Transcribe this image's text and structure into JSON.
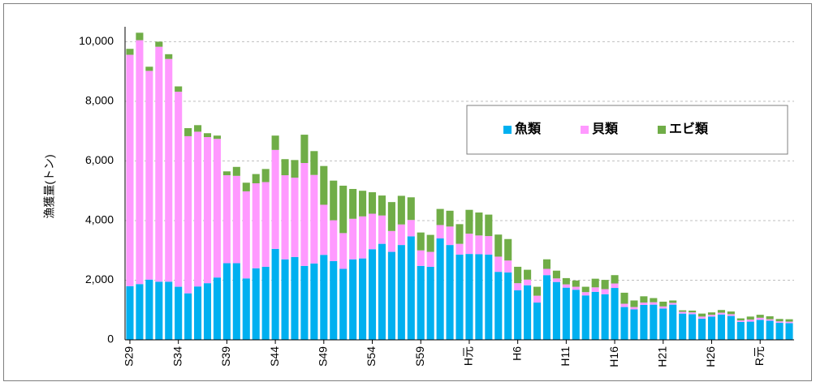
{
  "chart_data": {
    "type": "stacked_bar",
    "y_label": "漁獲量(トン)",
    "categories": [
      "S29",
      null,
      null,
      null,
      null,
      "S34",
      null,
      null,
      null,
      null,
      "S39",
      null,
      null,
      null,
      null,
      "S44",
      null,
      null,
      null,
      null,
      "S49",
      null,
      null,
      null,
      null,
      "S54",
      null,
      null,
      null,
      null,
      "S59",
      null,
      null,
      null,
      null,
      "H元",
      null,
      null,
      null,
      null,
      "H6",
      null,
      null,
      null,
      null,
      "H11",
      null,
      null,
      null,
      null,
      "H16",
      null,
      null,
      null,
      null,
      "H21",
      null,
      null,
      null,
      null,
      "H26",
      null,
      null,
      null,
      null,
      "R元",
      null,
      null,
      null
    ],
    "series": [
      {
        "name": "魚類",
        "color": "#00b0f0",
        "values": [
          1800,
          1870,
          2020,
          1950,
          1950,
          1780,
          1560,
          1790,
          1900,
          2090,
          2570,
          2570,
          2060,
          2400,
          2450,
          3050,
          2700,
          2780,
          2480,
          2560,
          2850,
          2640,
          2380,
          2700,
          2730,
          3040,
          3220,
          2950,
          3180,
          3470,
          2480,
          2450,
          3400,
          3180,
          2860,
          2880,
          2870,
          2860,
          2280,
          2260,
          1660,
          1830,
          1250,
          2170,
          1940,
          1750,
          1680,
          1490,
          1610,
          1530,
          1740,
          1100,
          1020,
          1170,
          1180,
          1050,
          1180,
          880,
          860,
          710,
          780,
          850,
          800,
          600,
          610,
          670,
          640,
          570,
          560
        ]
      },
      {
        "name": "貝類",
        "color": "#ff99ff",
        "values": [
          7760,
          8180,
          7000,
          7880,
          7470,
          6540,
          5270,
          5190,
          4900,
          4650,
          2950,
          2930,
          2920,
          2850,
          2840,
          3320,
          2820,
          2660,
          3450,
          2970,
          1680,
          1370,
          1200,
          1360,
          1410,
          1190,
          950,
          700,
          690,
          550,
          520,
          500,
          450,
          620,
          360,
          680,
          630,
          620,
          510,
          400,
          240,
          190,
          230,
          210,
          120,
          110,
          100,
          110,
          150,
          170,
          150,
          110,
          80,
          80,
          80,
          70,
          60,
          60,
          60,
          70,
          60,
          60,
          60,
          50,
          70,
          70,
          50,
          50,
          50
        ]
      },
      {
        "name": "エビ類",
        "color": "#70ad47",
        "values": [
          200,
          250,
          140,
          170,
          160,
          180,
          270,
          220,
          130,
          110,
          130,
          300,
          290,
          310,
          440,
          480,
          540,
          590,
          950,
          800,
          1300,
          1330,
          1590,
          1000,
          860,
          720,
          670,
          970,
          960,
          760,
          600,
          570,
          540,
          530,
          660,
          800,
          770,
          720,
          740,
          720,
          550,
          330,
          300,
          320,
          260,
          210,
          210,
          180,
          290,
          310,
          280,
          370,
          220,
          210,
          140,
          160,
          80,
          50,
          60,
          100,
          80,
          90,
          90,
          70,
          100,
          100,
          100,
          80,
          80
        ]
      }
    ],
    "ylim": [
      0,
      10500
    ],
    "yticks": [
      0,
      {
        "value": 2000,
        "label": "2,000"
      },
      {
        "value": 4000,
        "label": "4,000"
      },
      {
        "value": 6000,
        "label": "6,000"
      },
      {
        "value": 8000,
        "label": "8,000"
      },
      {
        "value": 10000,
        "label": "10,000"
      }
    ],
    "grid": true,
    "legend": "upper right"
  }
}
